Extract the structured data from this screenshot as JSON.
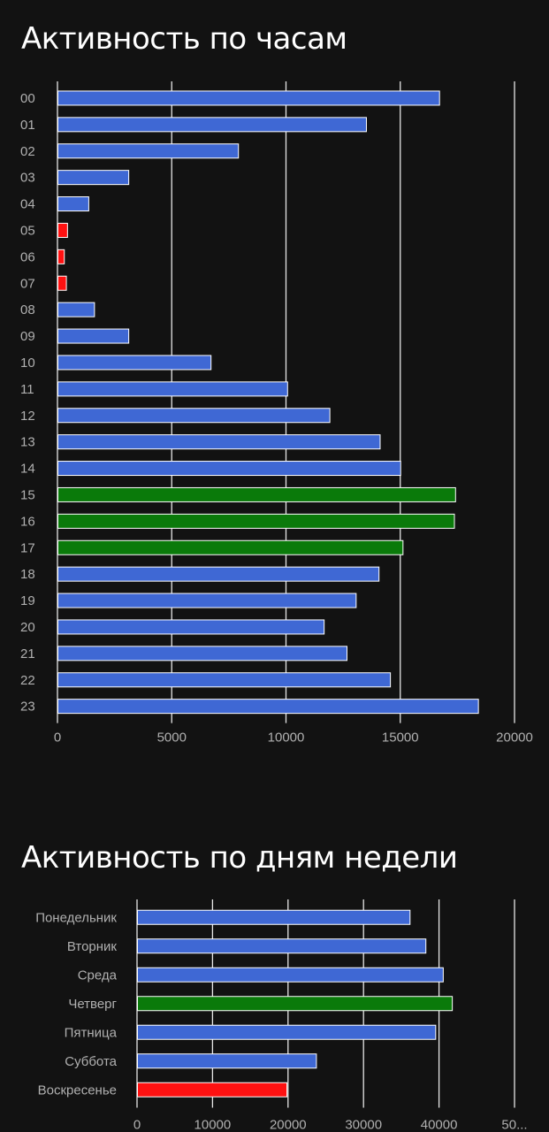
{
  "sections": {
    "hours_title": "Активность по часам",
    "days_title": "Активность по дням недели"
  },
  "colors": {
    "background": "#121212",
    "bar_default": "#3f68d4",
    "bar_high": "#0a7a0a",
    "bar_low": "#ff1111",
    "bar_stroke": "#ffffff",
    "grid": "#e6e6e6",
    "label": "#b0b0b0",
    "title": "#ffffff"
  },
  "chart_data": [
    {
      "type": "bar",
      "orientation": "horizontal",
      "title": "Активность по часам",
      "categories": [
        "00",
        "01",
        "02",
        "03",
        "04",
        "05",
        "06",
        "07",
        "08",
        "09",
        "10",
        "11",
        "12",
        "13",
        "14",
        "15",
        "16",
        "17",
        "18",
        "19",
        "20",
        "21",
        "22",
        "23"
      ],
      "values": [
        16700,
        13500,
        7900,
        3100,
        1350,
        420,
        280,
        370,
        1600,
        3100,
        6700,
        10050,
        11900,
        14100,
        15000,
        17400,
        17350,
        15100,
        14050,
        13050,
        11650,
        12650,
        14550,
        18400
      ],
      "highlight": [
        "default",
        "default",
        "default",
        "default",
        "default",
        "low",
        "low",
        "low",
        "default",
        "default",
        "default",
        "default",
        "default",
        "default",
        "default",
        "high",
        "high",
        "high",
        "default",
        "default",
        "default",
        "default",
        "default",
        "default"
      ],
      "xticks": [
        "0",
        "5000",
        "10000",
        "15000",
        "20000"
      ],
      "xlim": [
        0,
        20000
      ],
      "grid": true,
      "legend": "none"
    },
    {
      "type": "bar",
      "orientation": "horizontal",
      "title": "Активность по дням недели",
      "categories": [
        "Понедельник",
        "Вторник",
        "Среда",
        "Четверг",
        "Пятница",
        "Суббота",
        "Воскресенье"
      ],
      "values": [
        36100,
        38200,
        40500,
        41700,
        39500,
        23700,
        19800
      ],
      "highlight": [
        "default",
        "default",
        "default",
        "high",
        "default",
        "default",
        "low"
      ],
      "xticks": [
        "0",
        "10000",
        "20000",
        "30000",
        "40000",
        "50..."
      ],
      "xlim": [
        0,
        50000
      ],
      "grid": true,
      "legend": "none"
    }
  ]
}
